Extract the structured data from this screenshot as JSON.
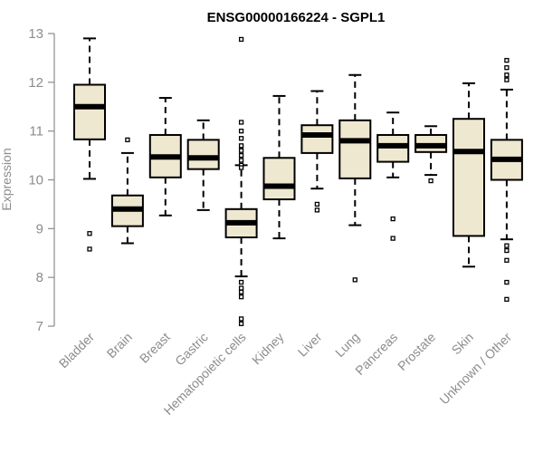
{
  "chart_data": {
    "type": "boxplot",
    "title": "ENSG00000166224 - SGPL1",
    "ylabel": "Expression",
    "xlabel": "",
    "ylim": [
      7,
      13
    ],
    "yticks": [
      7,
      8,
      9,
      10,
      11,
      12,
      13
    ],
    "ytick_labels": [
      "7",
      "8",
      "9",
      "10",
      "11",
      "12",
      "13"
    ],
    "box_fill": "#efe8d0",
    "box_stroke": "#000000",
    "axis_color": "#8c8c8c",
    "categories": [
      "Bladder",
      "Brain",
      "Breast",
      "Gastric",
      "Hematopoietic cells",
      "Kidney",
      "Liver",
      "Lung",
      "Pancreas",
      "Prostate",
      "Skin",
      "Unknown / Other"
    ],
    "boxes": [
      {
        "name": "Bladder",
        "whisker_low": 10.02,
        "q1": 10.83,
        "median": 11.5,
        "q3": 11.95,
        "whisker_high": 12.9,
        "outliers": [
          8.9,
          8.58
        ]
      },
      {
        "name": "Brain",
        "whisker_low": 8.7,
        "q1": 9.05,
        "median": 9.4,
        "q3": 9.68,
        "whisker_high": 10.55,
        "outliers": [
          10.82
        ]
      },
      {
        "name": "Breast",
        "whisker_low": 9.27,
        "q1": 10.05,
        "median": 10.47,
        "q3": 10.92,
        "whisker_high": 11.68,
        "outliers": []
      },
      {
        "name": "Gastric",
        "whisker_low": 9.38,
        "q1": 10.22,
        "median": 10.45,
        "q3": 10.82,
        "whisker_high": 11.22,
        "outliers": []
      },
      {
        "name": "Hematopoietic cells",
        "whisker_low": 8.02,
        "q1": 8.82,
        "median": 9.12,
        "q3": 9.4,
        "whisker_high": 10.3,
        "outliers": [
          12.88,
          11.18,
          11.0,
          10.85,
          10.7,
          10.6,
          10.5,
          10.4,
          10.3,
          10.25,
          7.9,
          7.78,
          7.7,
          7.6,
          7.15,
          7.05
        ]
      },
      {
        "name": "Kidney",
        "whisker_low": 8.8,
        "q1": 9.6,
        "median": 9.87,
        "q3": 10.45,
        "whisker_high": 11.72,
        "outliers": []
      },
      {
        "name": "Liver",
        "whisker_low": 9.82,
        "q1": 10.55,
        "median": 10.92,
        "q3": 11.12,
        "whisker_high": 11.82,
        "outliers": [
          9.5,
          9.38
        ]
      },
      {
        "name": "Lung",
        "whisker_low": 9.07,
        "q1": 10.03,
        "median": 10.8,
        "q3": 11.22,
        "whisker_high": 12.15,
        "outliers": [
          7.95
        ]
      },
      {
        "name": "Pancreas",
        "whisker_low": 10.05,
        "q1": 10.37,
        "median": 10.7,
        "q3": 10.92,
        "whisker_high": 11.38,
        "outliers": [
          9.2,
          8.8
        ]
      },
      {
        "name": "Prostate",
        "whisker_low": 10.1,
        "q1": 10.57,
        "median": 10.7,
        "q3": 10.92,
        "whisker_high": 11.1,
        "outliers": [
          9.98
        ]
      },
      {
        "name": "Skin",
        "whisker_low": 8.22,
        "q1": 8.85,
        "median": 10.58,
        "q3": 11.25,
        "whisker_high": 11.98,
        "outliers": []
      },
      {
        "name": "Unknown / Other",
        "whisker_low": 8.78,
        "q1": 10.0,
        "median": 10.42,
        "q3": 10.82,
        "whisker_high": 11.85,
        "outliers": [
          12.45,
          12.3,
          12.15,
          12.05,
          8.65,
          8.55,
          8.35,
          7.9,
          7.55
        ]
      }
    ]
  }
}
